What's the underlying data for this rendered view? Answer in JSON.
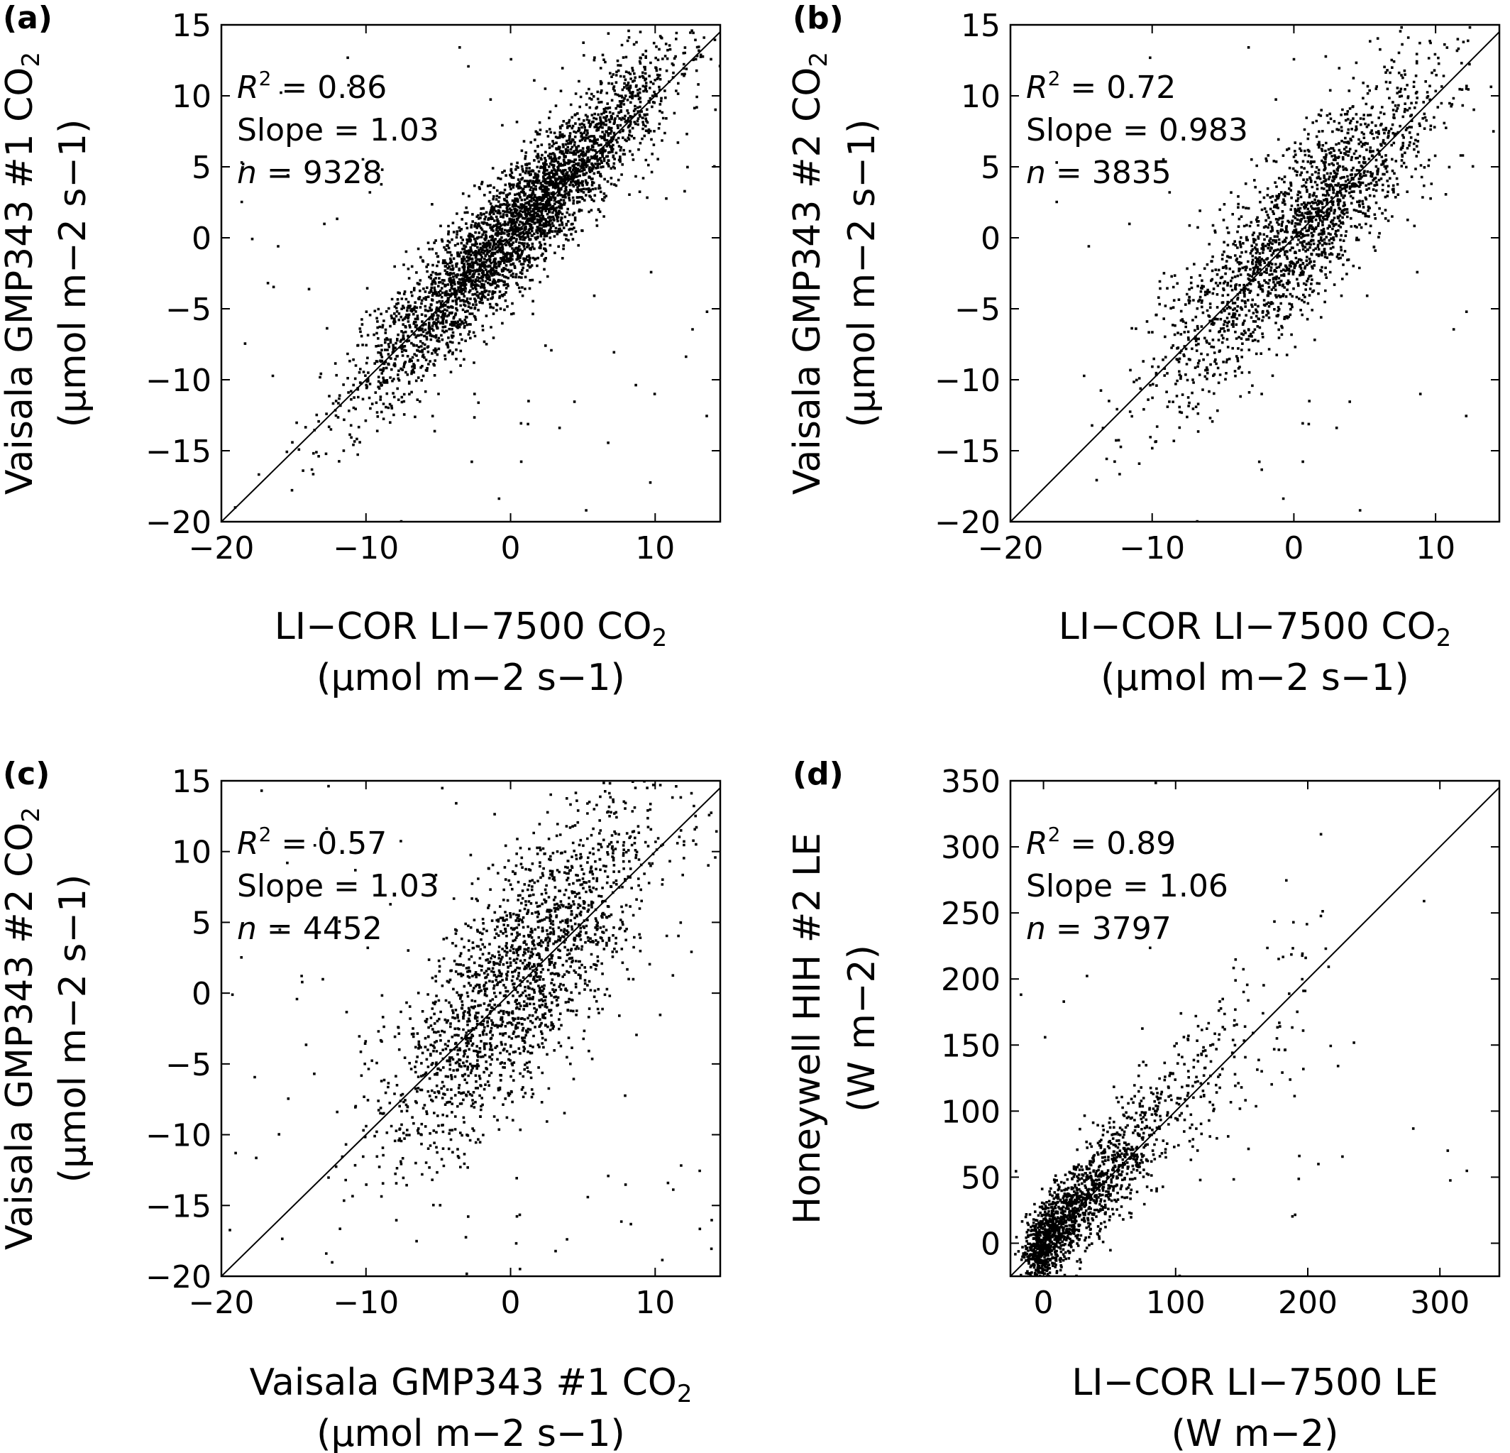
{
  "figure": {
    "panels": [
      {
        "label": "(a)",
        "xlabel_line1": "LI−COR LI−7500 CO",
        "xlabel_sub": "2",
        "xlabel_line2": "(µmol m−2 s−1)",
        "ylabel_line1": "Vaisala GMP343 #1 CO",
        "ylabel_sub": "2",
        "ylabel_line2": "(µmol m−2 s−1)",
        "r2": "0.86",
        "slope": "1.03",
        "n": "9328"
      },
      {
        "label": "(b)",
        "xlabel_line1": "LI−COR LI−7500 CO",
        "xlabel_sub": "2",
        "xlabel_line2": "(µmol m−2 s−1)",
        "ylabel_line1": "Vaisala GMP343 #2 CO",
        "ylabel_sub": "2",
        "ylabel_line2": "(µmol m−2 s−1)",
        "r2": "0.72",
        "slope": "0.983",
        "n": "3835"
      },
      {
        "label": "(c)",
        "xlabel_line1": "Vaisala GMP343 #1 CO",
        "xlabel_sub": "2",
        "xlabel_line2": "(µmol m−2 s−1)",
        "ylabel_line1": "Vaisala GMP343 #2 CO",
        "ylabel_sub": "2",
        "ylabel_line2": "(µmol m−2 s−1)",
        "r2": "0.57",
        "slope": "1.03",
        "n": "4452"
      },
      {
        "label": "(d)",
        "xlabel_line1": "LI−COR LI−7500 LE",
        "xlabel_sub": "",
        "xlabel_line2": "(W m−2)",
        "ylabel_line1": "Honeywell HIH #2 LE",
        "ylabel_sub": "",
        "ylabel_line2": "(W m−2)",
        "r2": "0.89",
        "slope": "1.06",
        "n": "3797"
      }
    ]
  },
  "chart_data": [
    {
      "type": "scatter",
      "panel": "(a)",
      "xlim": [
        -20,
        14.5
      ],
      "ylim": [
        -20,
        15
      ],
      "xticks": [
        -20,
        -10,
        0,
        10
      ],
      "xtick_labels": [
        "−20",
        "−10",
        "0",
        "10"
      ],
      "yticks": [
        -20,
        -15,
        -10,
        -5,
        0,
        5,
        10,
        15
      ],
      "ytick_labels": [
        "−20",
        "−15",
        "−10",
        "−5",
        "0",
        "5",
        "10",
        "15"
      ],
      "one_to_one_line": true,
      "grid": false,
      "marker_color": "#000000",
      "stats": {
        "r2": 0.86,
        "slope": 1.03,
        "n": 9328
      },
      "point_cloud": {
        "n_points": 9328,
        "slope": 1.03,
        "r2": 0.86,
        "center": [
          0.5,
          0.8
        ],
        "x_spread": 5.2,
        "x_range": [
          -20,
          14.5
        ],
        "outlier_fraction": 0.02
      }
    },
    {
      "type": "scatter",
      "panel": "(b)",
      "xlim": [
        -20,
        14.5
      ],
      "ylim": [
        -20,
        15
      ],
      "xticks": [
        -20,
        -10,
        0,
        10
      ],
      "xtick_labels": [
        "−20",
        "−10",
        "0",
        "10"
      ],
      "yticks": [
        -20,
        -15,
        -10,
        -5,
        0,
        5,
        10,
        15
      ],
      "ytick_labels": [
        "−20",
        "−15",
        "−10",
        "−5",
        "0",
        "5",
        "10",
        "15"
      ],
      "one_to_one_line": true,
      "grid": false,
      "marker_color": "#000000",
      "stats": {
        "r2": 0.72,
        "slope": 0.983,
        "n": 3835
      },
      "point_cloud": {
        "n_points": 3835,
        "slope": 0.983,
        "r2": 0.72,
        "center": [
          0.5,
          0.5
        ],
        "x_spread": 4.8,
        "x_range": [
          -18,
          13
        ],
        "outlier_fraction": 0.02
      }
    },
    {
      "type": "scatter",
      "panel": "(c)",
      "xlim": [
        -20,
        14.5
      ],
      "ylim": [
        -20,
        15
      ],
      "xticks": [
        -20,
        -10,
        0,
        10
      ],
      "xtick_labels": [
        "−20",
        "−10",
        "0",
        "10"
      ],
      "yticks": [
        -20,
        -15,
        -10,
        -5,
        0,
        5,
        10,
        15
      ],
      "ytick_labels": [
        "−20",
        "−15",
        "−10",
        "−5",
        "0",
        "5",
        "10",
        "15"
      ],
      "one_to_one_line": true,
      "grid": false,
      "marker_color": "#000000",
      "stats": {
        "r2": 0.57,
        "slope": 1.03,
        "n": 4452
      },
      "point_cloud": {
        "n_points": 4452,
        "slope": 1.03,
        "r2": 0.57,
        "center": [
          0.8,
          1.0
        ],
        "x_spread": 4.6,
        "x_range": [
          -20,
          14
        ],
        "outlier_fraction": 0.04
      }
    },
    {
      "type": "scatter",
      "panel": "(d)",
      "xlim": [
        -25,
        345
      ],
      "ylim": [
        -25,
        350
      ],
      "xticks": [
        0,
        100,
        200,
        300
      ],
      "xtick_labels": [
        "0",
        "100",
        "200",
        "300"
      ],
      "yticks": [
        0,
        50,
        100,
        150,
        200,
        250,
        300,
        350
      ],
      "ytick_labels": [
        "0",
        "50",
        "100",
        "150",
        "200",
        "250",
        "300",
        "350"
      ],
      "one_to_one_line": true,
      "grid": false,
      "marker_color": "#000000",
      "stats": {
        "r2": 0.89,
        "slope": 1.06,
        "n": 3797
      },
      "point_cloud": {
        "n_points": 3797,
        "slope": 1.06,
        "r2": 0.89,
        "distribution": "exponential",
        "x_mean": 45,
        "x_range": [
          -25,
          330
        ],
        "outlier_fraction": 0.01
      }
    }
  ]
}
